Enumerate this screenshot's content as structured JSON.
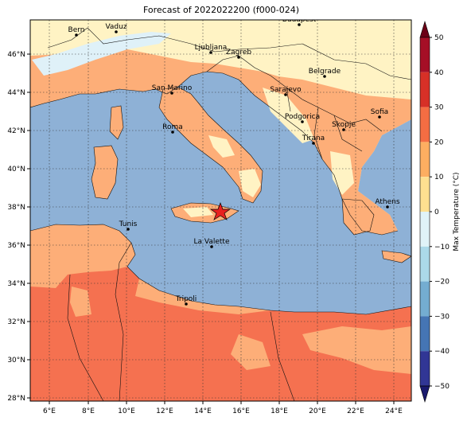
{
  "title": "Forecast of 2022022200 (f000-024)",
  "colorbar": {
    "label": "Max Temperature (°C)",
    "ticks": [
      "50",
      "40",
      "30",
      "20",
      "10",
      "0",
      "−10",
      "−20",
      "−30",
      "−40",
      "−50"
    ],
    "bands": [
      "#6b0016",
      "#a50f26",
      "#d73027",
      "#f46d43",
      "#fdae61",
      "#fee090",
      "#e0f3f8",
      "#abd9e9",
      "#74add1",
      "#4575b4",
      "#313695"
    ]
  },
  "axes": {
    "lon_labels": [
      "6°E",
      "8°E",
      "10°E",
      "12°E",
      "14°E",
      "16°E",
      "18°E",
      "20°E",
      "22°E",
      "24°E"
    ],
    "lat_labels": [
      "46°N",
      "44°N",
      "42°N",
      "40°N",
      "38°N",
      "36°N",
      "34°N",
      "32°N",
      "30°N",
      "28°N"
    ]
  },
  "colors": {
    "sea": "#8eb1d6",
    "warm": "#fdae78",
    "hot": "#f57150",
    "mild": "#fff3c4",
    "cold": "#dff1f8"
  },
  "cities": [
    {
      "name": "Bern"
    },
    {
      "name": "Vaduz"
    },
    {
      "name": "Budapest"
    },
    {
      "name": "Ljubljana"
    },
    {
      "name": "Zagreb"
    },
    {
      "name": "Belgrade"
    },
    {
      "name": "San Marino"
    },
    {
      "name": "Sarajevo"
    },
    {
      "name": "Sofia"
    },
    {
      "name": "Podgorica"
    },
    {
      "name": "Skopje"
    },
    {
      "name": "Roma"
    },
    {
      "name": "Tirana"
    },
    {
      "name": "Athens"
    },
    {
      "name": "Tunis"
    },
    {
      "name": "La Valette"
    },
    {
      "name": "Tripoli"
    }
  ],
  "marker": "star"
}
